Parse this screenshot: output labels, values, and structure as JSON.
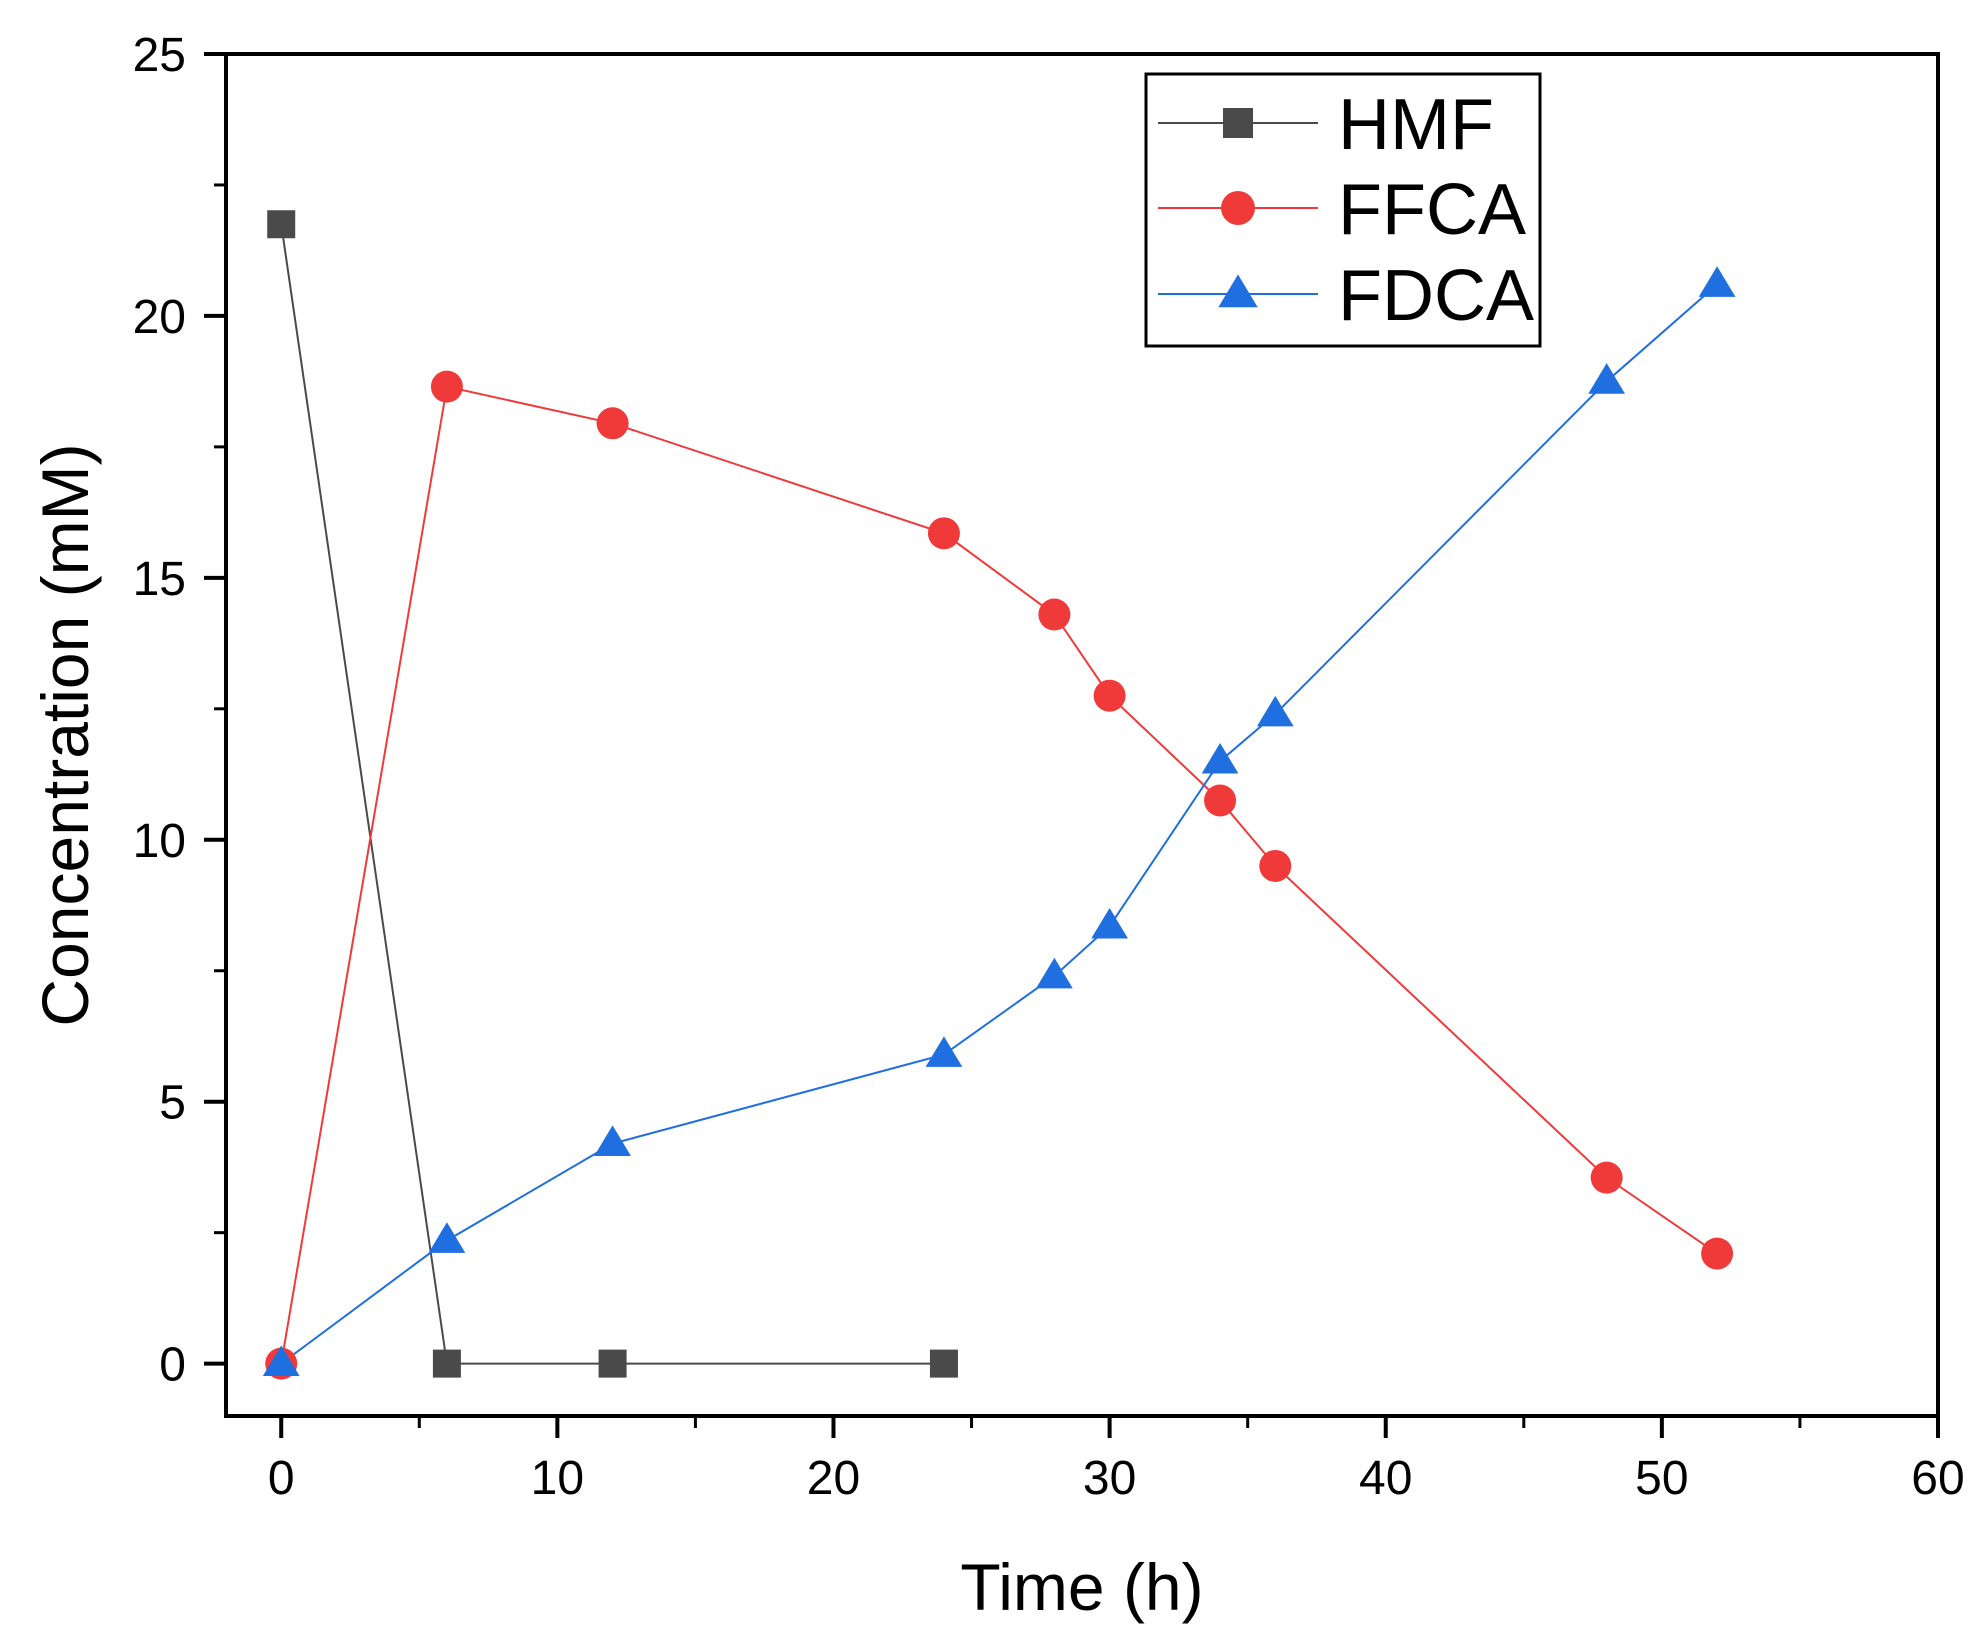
{
  "chart_data": {
    "type": "line",
    "title": "",
    "xlabel": "Time (h)",
    "ylabel": "Concentration (mM)",
    "xlim": [
      -2,
      60
    ],
    "ylim": [
      -1,
      25
    ],
    "xticks": [
      0,
      10,
      20,
      30,
      40,
      50,
      60
    ],
    "yticks": [
      0,
      5,
      10,
      15,
      20,
      25
    ],
    "xtick_labels": [
      "0",
      "10",
      "20",
      "30",
      "40",
      "50",
      "60"
    ],
    "ytick_labels": [
      "0",
      "5",
      "10",
      "15",
      "20",
      "25"
    ],
    "grid": false,
    "legend_position": "top-right",
    "series": [
      {
        "name": "HMF",
        "marker": "square",
        "color": "#4a4a4a",
        "x": [
          0,
          6,
          12,
          24
        ],
        "y": [
          21.75,
          0,
          0,
          0
        ]
      },
      {
        "name": "FFCA",
        "marker": "circle",
        "color": "#f03a3a",
        "x": [
          0,
          6,
          12,
          24,
          28,
          30,
          34,
          36,
          48,
          52
        ],
        "y": [
          0,
          18.65,
          17.95,
          15.85,
          14.3,
          12.75,
          10.75,
          9.5,
          3.55,
          2.1
        ]
      },
      {
        "name": "FDCA",
        "marker": "triangle",
        "color": "#1f6fe0",
        "x": [
          0,
          6,
          12,
          24,
          28,
          30,
          34,
          36,
          48,
          52
        ],
        "y": [
          0,
          2.35,
          4.2,
          5.9,
          7.4,
          8.35,
          11.5,
          12.4,
          18.75,
          20.6
        ]
      }
    ]
  }
}
